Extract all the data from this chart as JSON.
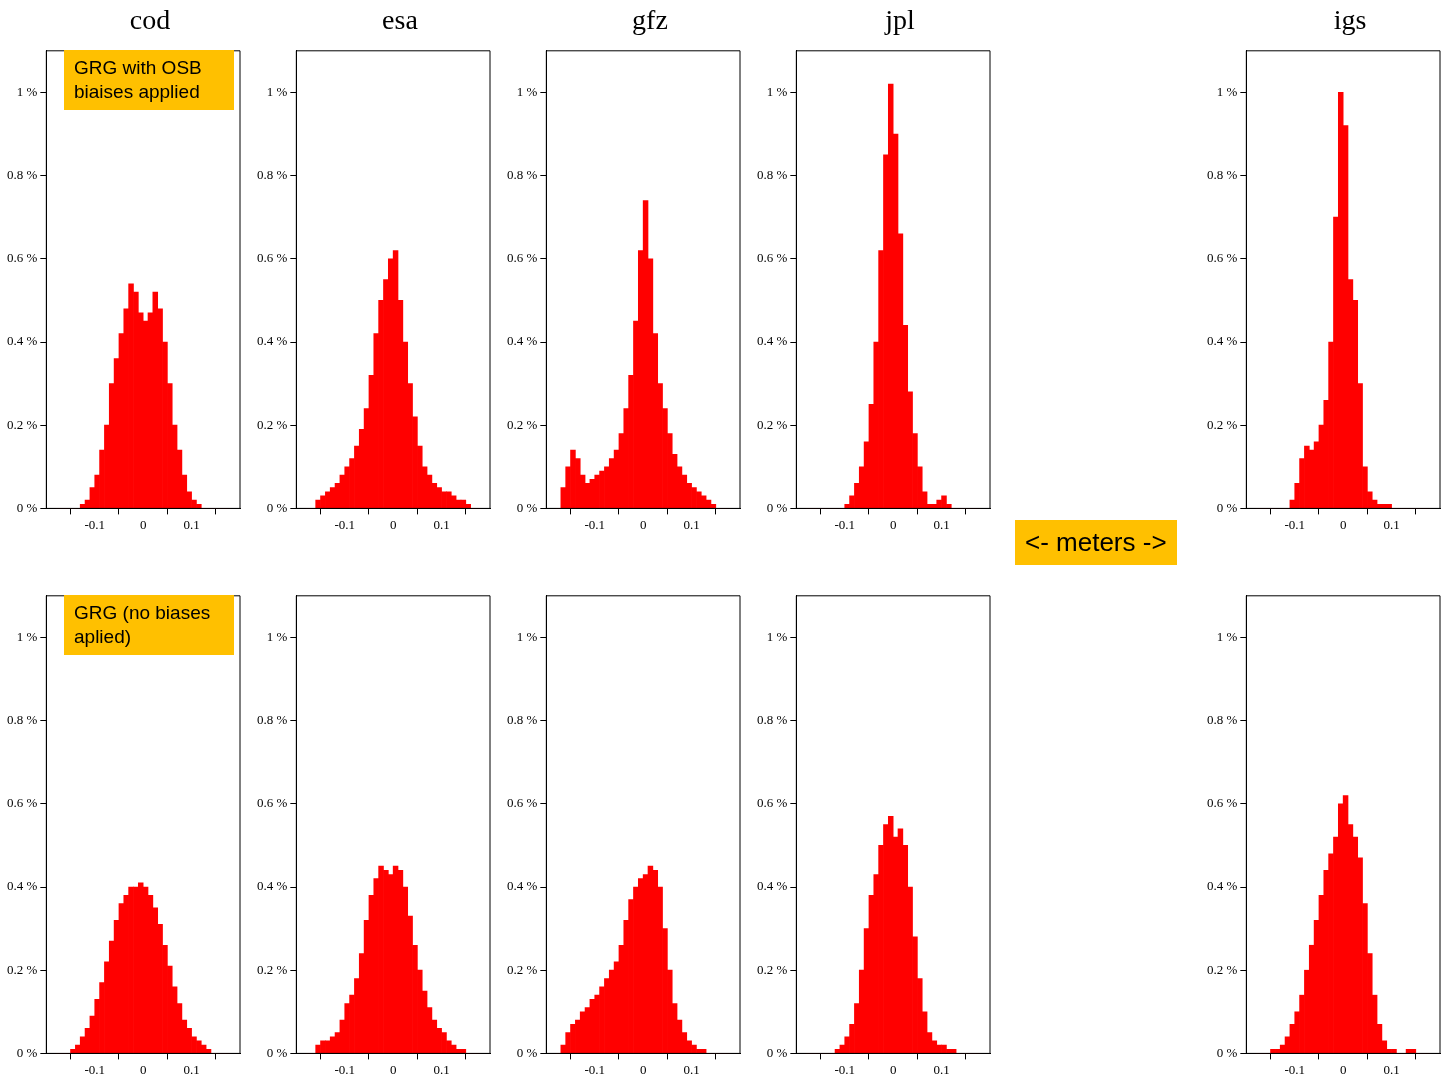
{
  "chart_data": [
    {
      "type": "histogram",
      "title": "cod",
      "color": "#ff0000",
      "grid": false,
      "xlim": [
        -0.2,
        0.2
      ],
      "xticks": [
        -0.1,
        0,
        0.1
      ],
      "ylim": [
        0,
        1.1
      ],
      "yticks": [
        {
          "value": 0,
          "label": "0 %"
        },
        {
          "value": 0.2,
          "label": "0.2 %"
        },
        {
          "value": 0.4,
          "label": "0.4 %"
        },
        {
          "value": 0.6,
          "label": "0.6 %"
        },
        {
          "value": 0.8,
          "label": "0.8 %"
        },
        {
          "value": 1,
          "label": "1 %"
        }
      ],
      "annotations": [
        "GRG with OSB biaises applied"
      ],
      "bins": [
        -0.18,
        -0.17,
        -0.16,
        -0.15,
        -0.14,
        -0.13,
        -0.12,
        -0.11,
        -0.1,
        -0.09,
        -0.08,
        -0.07,
        -0.06,
        -0.05,
        -0.04,
        -0.03,
        -0.02,
        -0.01,
        0,
        0.01,
        0.02,
        0.03,
        0.04,
        0.05,
        0.06,
        0.07,
        0.08,
        0.09,
        0.1,
        0.11,
        0.12,
        0.13,
        0.14,
        0.15,
        0.16,
        0.17,
        0.18
      ],
      "values": [
        0,
        0,
        0,
        0,
        0,
        0.01,
        0.02,
        0.05,
        0.08,
        0.14,
        0.2,
        0.3,
        0.36,
        0.42,
        0.48,
        0.54,
        0.52,
        0.47,
        0.45,
        0.47,
        0.52,
        0.48,
        0.4,
        0.3,
        0.2,
        0.14,
        0.08,
        0.04,
        0.02,
        0.01,
        0,
        0,
        0,
        0,
        0,
        0
      ]
    },
    {
      "type": "histogram",
      "title": "esa",
      "color": "#ff0000",
      "grid": false,
      "xlim": [
        -0.2,
        0.2
      ],
      "xticks": [
        -0.1,
        0,
        0.1
      ],
      "ylim": [
        0,
        1.1
      ],
      "yticks": [
        {
          "value": 0,
          "label": "0 %"
        },
        {
          "value": 0.2,
          "label": "0.2 %"
        },
        {
          "value": 0.4,
          "label": "0.4 %"
        },
        {
          "value": 0.6,
          "label": "0.6 %"
        },
        {
          "value": 0.8,
          "label": "0.8 %"
        },
        {
          "value": 1,
          "label": "1 %"
        }
      ],
      "bins": [
        -0.18,
        -0.17,
        -0.16,
        -0.15,
        -0.14,
        -0.13,
        -0.12,
        -0.11,
        -0.1,
        -0.09,
        -0.08,
        -0.07,
        -0.06,
        -0.05,
        -0.04,
        -0.03,
        -0.02,
        -0.01,
        0,
        0.01,
        0.02,
        0.03,
        0.04,
        0.05,
        0.06,
        0.07,
        0.08,
        0.09,
        0.1,
        0.11,
        0.12,
        0.13,
        0.14,
        0.15,
        0.16,
        0.17,
        0.18
      ],
      "values": [
        0,
        0,
        0.02,
        0.03,
        0.04,
        0.05,
        0.06,
        0.08,
        0.1,
        0.12,
        0.15,
        0.19,
        0.24,
        0.32,
        0.42,
        0.5,
        0.55,
        0.6,
        0.62,
        0.5,
        0.4,
        0.3,
        0.22,
        0.15,
        0.1,
        0.08,
        0.06,
        0.05,
        0.04,
        0.04,
        0.03,
        0.02,
        0.02,
        0.01,
        0,
        0
      ]
    },
    {
      "type": "histogram",
      "title": "gfz",
      "color": "#ff0000",
      "grid": false,
      "xlim": [
        -0.2,
        0.2
      ],
      "xticks": [
        -0.1,
        0,
        0.1
      ],
      "ylim": [
        0,
        1.1
      ],
      "yticks": [
        {
          "value": 0,
          "label": "0 %"
        },
        {
          "value": 0.2,
          "label": "0.2 %"
        },
        {
          "value": 0.4,
          "label": "0.4 %"
        },
        {
          "value": 0.6,
          "label": "0.6 %"
        },
        {
          "value": 0.8,
          "label": "0.8 %"
        },
        {
          "value": 1,
          "label": "1 %"
        }
      ],
      "bins": [
        -0.18,
        -0.17,
        -0.16,
        -0.15,
        -0.14,
        -0.13,
        -0.12,
        -0.11,
        -0.1,
        -0.09,
        -0.08,
        -0.07,
        -0.06,
        -0.05,
        -0.04,
        -0.03,
        -0.02,
        -0.01,
        0,
        0.01,
        0.02,
        0.03,
        0.04,
        0.05,
        0.06,
        0.07,
        0.08,
        0.09,
        0.1,
        0.11,
        0.12,
        0.13,
        0.14,
        0.15,
        0.16,
        0.17,
        0.18
      ],
      "values": [
        0,
        0.05,
        0.1,
        0.14,
        0.12,
        0.08,
        0.06,
        0.07,
        0.08,
        0.09,
        0.1,
        0.12,
        0.14,
        0.18,
        0.24,
        0.32,
        0.45,
        0.62,
        0.74,
        0.6,
        0.42,
        0.3,
        0.24,
        0.18,
        0.13,
        0.1,
        0.08,
        0.06,
        0.05,
        0.04,
        0.03,
        0.02,
        0.01,
        0,
        0,
        0
      ]
    },
    {
      "type": "histogram",
      "title": "jpl",
      "color": "#ff0000",
      "grid": false,
      "xlim": [
        -0.2,
        0.2
      ],
      "xticks": [
        -0.1,
        0,
        0.1
      ],
      "ylim": [
        0,
        1.1
      ],
      "yticks": [
        {
          "value": 0,
          "label": "0 %"
        },
        {
          "value": 0.2,
          "label": "0.2 %"
        },
        {
          "value": 0.4,
          "label": "0.4 %"
        },
        {
          "value": 0.6,
          "label": "0.6 %"
        },
        {
          "value": 0.8,
          "label": "0.8 %"
        },
        {
          "value": 1,
          "label": "1 %"
        }
      ],
      "bins": [
        -0.18,
        -0.17,
        -0.16,
        -0.15,
        -0.14,
        -0.13,
        -0.12,
        -0.11,
        -0.1,
        -0.09,
        -0.08,
        -0.07,
        -0.06,
        -0.05,
        -0.04,
        -0.03,
        -0.02,
        -0.01,
        0,
        0.01,
        0.02,
        0.03,
        0.04,
        0.05,
        0.06,
        0.07,
        0.08,
        0.09,
        0.1,
        0.11,
        0.12,
        0.13,
        0.14,
        0.15,
        0.16,
        0.17,
        0.18
      ],
      "values": [
        0,
        0,
        0,
        0,
        0,
        0,
        0,
        0,
        0.01,
        0.03,
        0.06,
        0.1,
        0.16,
        0.25,
        0.4,
        0.62,
        0.85,
        1.02,
        0.9,
        0.66,
        0.44,
        0.28,
        0.18,
        0.1,
        0.04,
        0.01,
        0.01,
        0.02,
        0.03,
        0.01,
        0,
        0,
        0,
        0,
        0,
        0
      ]
    },
    {
      "type": "histogram",
      "title": "igs",
      "color": "#ff0000",
      "grid": false,
      "xlim": [
        -0.2,
        0.2
      ],
      "xticks": [
        -0.1,
        0,
        0.1
      ],
      "ylim": [
        0,
        1.1
      ],
      "yticks": [
        {
          "value": 0,
          "label": "0 %"
        },
        {
          "value": 0.2,
          "label": "0.2 %"
        },
        {
          "value": 0.4,
          "label": "0.4 %"
        },
        {
          "value": 0.6,
          "label": "0.6 %"
        },
        {
          "value": 0.8,
          "label": "0.8 %"
        },
        {
          "value": 1,
          "label": "1 %"
        }
      ],
      "annotations": [
        "<- meters ->"
      ],
      "bins": [
        -0.18,
        -0.17,
        -0.16,
        -0.15,
        -0.14,
        -0.13,
        -0.12,
        -0.11,
        -0.1,
        -0.09,
        -0.08,
        -0.07,
        -0.06,
        -0.05,
        -0.04,
        -0.03,
        -0.02,
        -0.01,
        0,
        0.01,
        0.02,
        0.03,
        0.04,
        0.05,
        0.06,
        0.07,
        0.08,
        0.09,
        0.1,
        0.11,
        0.12,
        0.13,
        0.14,
        0.15,
        0.16,
        0.17,
        0.18
      ],
      "values": [
        0,
        0,
        0,
        0,
        0,
        0,
        0,
        0.02,
        0.06,
        0.12,
        0.15,
        0.14,
        0.16,
        0.2,
        0.26,
        0.4,
        0.7,
        1.0,
        0.92,
        0.55,
        0.5,
        0.3,
        0.1,
        0.04,
        0.02,
        0.01,
        0.01,
        0.01,
        0,
        0,
        0,
        0,
        0,
        0,
        0,
        0
      ]
    },
    {
      "type": "histogram",
      "color": "#ff0000",
      "grid": false,
      "xlim": [
        -0.2,
        0.2
      ],
      "xticks": [
        -0.1,
        0,
        0.1
      ],
      "ylim": [
        0,
        1.1
      ],
      "yticks": [
        {
          "value": 0,
          "label": "0 %"
        },
        {
          "value": 0.2,
          "label": "0.2 %"
        },
        {
          "value": 0.4,
          "label": "0.4 %"
        },
        {
          "value": 0.6,
          "label": "0.6 %"
        },
        {
          "value": 0.8,
          "label": "0.8 %"
        },
        {
          "value": 1,
          "label": "1 %"
        }
      ],
      "annotations": [
        "GRG (no biases aplied)"
      ],
      "bins": [
        -0.18,
        -0.17,
        -0.16,
        -0.15,
        -0.14,
        -0.13,
        -0.12,
        -0.11,
        -0.1,
        -0.09,
        -0.08,
        -0.07,
        -0.06,
        -0.05,
        -0.04,
        -0.03,
        -0.02,
        -0.01,
        0,
        0.01,
        0.02,
        0.03,
        0.04,
        0.05,
        0.06,
        0.07,
        0.08,
        0.09,
        0.1,
        0.11,
        0.12,
        0.13,
        0.14,
        0.15,
        0.16,
        0.17,
        0.18
      ],
      "values": [
        0,
        0,
        0,
        0.01,
        0.02,
        0.04,
        0.06,
        0.09,
        0.13,
        0.17,
        0.22,
        0.27,
        0.32,
        0.36,
        0.38,
        0.4,
        0.4,
        0.41,
        0.4,
        0.38,
        0.35,
        0.31,
        0.26,
        0.21,
        0.16,
        0.12,
        0.08,
        0.06,
        0.04,
        0.03,
        0.02,
        0.01,
        0,
        0,
        0,
        0
      ]
    },
    {
      "type": "histogram",
      "color": "#ff0000",
      "grid": false,
      "xlim": [
        -0.2,
        0.2
      ],
      "xticks": [
        -0.1,
        0,
        0.1
      ],
      "ylim": [
        0,
        1.1
      ],
      "yticks": [
        {
          "value": 0,
          "label": "0 %"
        },
        {
          "value": 0.2,
          "label": "0.2 %"
        },
        {
          "value": 0.4,
          "label": "0.4 %"
        },
        {
          "value": 0.6,
          "label": "0.6 %"
        },
        {
          "value": 0.8,
          "label": "0.8 %"
        },
        {
          "value": 1,
          "label": "1 %"
        }
      ],
      "bins": [
        -0.18,
        -0.17,
        -0.16,
        -0.15,
        -0.14,
        -0.13,
        -0.12,
        -0.11,
        -0.1,
        -0.09,
        -0.08,
        -0.07,
        -0.06,
        -0.05,
        -0.04,
        -0.03,
        -0.02,
        -0.01,
        0,
        0.01,
        0.02,
        0.03,
        0.04,
        0.05,
        0.06,
        0.07,
        0.08,
        0.09,
        0.1,
        0.11,
        0.12,
        0.13,
        0.14,
        0.15,
        0.16,
        0.17,
        0.18
      ],
      "values": [
        0,
        0,
        0.02,
        0.03,
        0.03,
        0.04,
        0.05,
        0.08,
        0.12,
        0.14,
        0.18,
        0.24,
        0.32,
        0.38,
        0.42,
        0.45,
        0.44,
        0.43,
        0.45,
        0.44,
        0.4,
        0.33,
        0.26,
        0.2,
        0.15,
        0.11,
        0.08,
        0.06,
        0.05,
        0.03,
        0.02,
        0.01,
        0.01,
        0,
        0,
        0
      ]
    },
    {
      "type": "histogram",
      "color": "#ff0000",
      "grid": false,
      "xlim": [
        -0.2,
        0.2
      ],
      "xticks": [
        -0.1,
        0,
        0.1
      ],
      "ylim": [
        0,
        1.1
      ],
      "yticks": [
        {
          "value": 0,
          "label": "0 %"
        },
        {
          "value": 0.2,
          "label": "0.2 %"
        },
        {
          "value": 0.4,
          "label": "0.4 %"
        },
        {
          "value": 0.6,
          "label": "0.6 %"
        },
        {
          "value": 0.8,
          "label": "0.8 %"
        },
        {
          "value": 1,
          "label": "1 %"
        }
      ],
      "bins": [
        -0.18,
        -0.17,
        -0.16,
        -0.15,
        -0.14,
        -0.13,
        -0.12,
        -0.11,
        -0.1,
        -0.09,
        -0.08,
        -0.07,
        -0.06,
        -0.05,
        -0.04,
        -0.03,
        -0.02,
        -0.01,
        0,
        0.01,
        0.02,
        0.03,
        0.04,
        0.05,
        0.06,
        0.07,
        0.08,
        0.09,
        0.1,
        0.11,
        0.12,
        0.13,
        0.14,
        0.15,
        0.16,
        0.17,
        0.18
      ],
      "values": [
        0,
        0.02,
        0.05,
        0.07,
        0.08,
        0.1,
        0.11,
        0.13,
        0.14,
        0.16,
        0.18,
        0.2,
        0.22,
        0.26,
        0.32,
        0.37,
        0.4,
        0.42,
        0.43,
        0.45,
        0.44,
        0.4,
        0.3,
        0.2,
        0.12,
        0.08,
        0.05,
        0.03,
        0.02,
        0.01,
        0.01,
        0,
        0,
        0,
        0,
        0
      ]
    },
    {
      "type": "histogram",
      "color": "#ff0000",
      "grid": false,
      "xlim": [
        -0.2,
        0.2
      ],
      "xticks": [
        -0.1,
        0,
        0.1
      ],
      "ylim": [
        0,
        1.1
      ],
      "yticks": [
        {
          "value": 0,
          "label": "0 %"
        },
        {
          "value": 0.2,
          "label": "0.2 %"
        },
        {
          "value": 0.4,
          "label": "0.4 %"
        },
        {
          "value": 0.6,
          "label": "0.6 %"
        },
        {
          "value": 0.8,
          "label": "0.8 %"
        },
        {
          "value": 1,
          "label": "1 %"
        }
      ],
      "bins": [
        -0.18,
        -0.17,
        -0.16,
        -0.15,
        -0.14,
        -0.13,
        -0.12,
        -0.11,
        -0.1,
        -0.09,
        -0.08,
        -0.07,
        -0.06,
        -0.05,
        -0.04,
        -0.03,
        -0.02,
        -0.01,
        0,
        0.01,
        0.02,
        0.03,
        0.04,
        0.05,
        0.06,
        0.07,
        0.08,
        0.09,
        0.1,
        0.11,
        0.12,
        0.13,
        0.14,
        0.15,
        0.16,
        0.17,
        0.18
      ],
      "values": [
        0,
        0,
        0,
        0,
        0,
        0,
        0.01,
        0.02,
        0.04,
        0.07,
        0.12,
        0.2,
        0.3,
        0.38,
        0.43,
        0.5,
        0.55,
        0.57,
        0.52,
        0.54,
        0.5,
        0.4,
        0.28,
        0.18,
        0.1,
        0.05,
        0.03,
        0.02,
        0.02,
        0.01,
        0.01,
        0,
        0,
        0,
        0,
        0
      ]
    },
    {
      "type": "histogram",
      "color": "#ff0000",
      "grid": false,
      "xlim": [
        -0.2,
        0.2
      ],
      "xticks": [
        -0.1,
        0,
        0.1
      ],
      "ylim": [
        0,
        1.1
      ],
      "yticks": [
        {
          "value": 0,
          "label": "0 %"
        },
        {
          "value": 0.2,
          "label": "0.2 %"
        },
        {
          "value": 0.4,
          "label": "0.4 %"
        },
        {
          "value": 0.6,
          "label": "0.6 %"
        },
        {
          "value": 0.8,
          "label": "0.8 %"
        },
        {
          "value": 1,
          "label": "1 %"
        }
      ],
      "bins": [
        -0.18,
        -0.17,
        -0.16,
        -0.15,
        -0.14,
        -0.13,
        -0.12,
        -0.11,
        -0.1,
        -0.09,
        -0.08,
        -0.07,
        -0.06,
        -0.05,
        -0.04,
        -0.03,
        -0.02,
        -0.01,
        0,
        0.01,
        0.02,
        0.03,
        0.04,
        0.05,
        0.06,
        0.07,
        0.08,
        0.09,
        0.1,
        0.11,
        0.12,
        0.13,
        0.14,
        0.15,
        0.16,
        0.17,
        0.18
      ],
      "values": [
        0,
        0,
        0,
        0.01,
        0.01,
        0.02,
        0.04,
        0.07,
        0.1,
        0.14,
        0.2,
        0.26,
        0.32,
        0.38,
        0.44,
        0.48,
        0.52,
        0.6,
        0.62,
        0.55,
        0.52,
        0.47,
        0.36,
        0.24,
        0.14,
        0.07,
        0.03,
        0.01,
        0.01,
        0,
        0,
        0.01,
        0.01,
        0,
        0,
        0
      ]
    }
  ]
}
